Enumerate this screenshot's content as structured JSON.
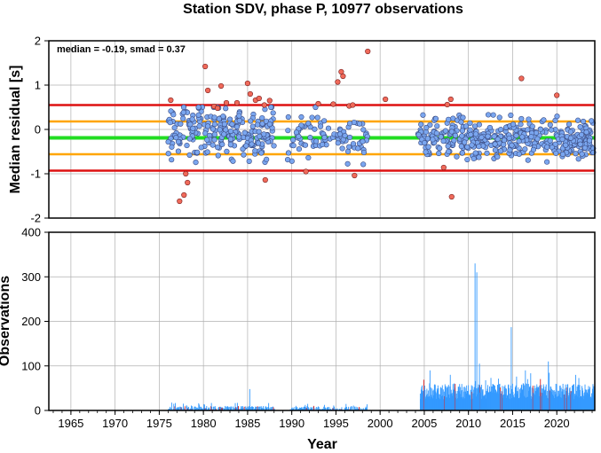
{
  "title": "Station SDV, phase P, 10977 observations",
  "colors": {
    "grid": "#b0b0b0",
    "point_normal": "#7aa6ef",
    "point_outlier": "#f06a5a",
    "line_median": "#22dd22",
    "line_inner": "#ffa500",
    "line_outer": "#dd1111",
    "bar_normal": "#3399ff",
    "bar_highlight": "#dd2222"
  },
  "chart_data": [
    {
      "type": "scatter",
      "ylabel": "Median residual [s]",
      "xlim": [
        1962.5,
        2024.3
      ],
      "ylim": [
        -2,
        2
      ],
      "yticks": [
        2,
        1,
        0,
        -1,
        -2
      ],
      "xticks": [
        1965,
        1970,
        1975,
        1980,
        1985,
        1990,
        1995,
        2000,
        2005,
        2010,
        2015,
        2020
      ],
      "grid": true,
      "annotation": "median = -0.19, smad = 0.37",
      "hlines": [
        {
          "y": 0.55,
          "color": "red"
        },
        {
          "y": 0.18,
          "color": "orange"
        },
        {
          "y": -0.19,
          "color": "green"
        },
        {
          "y": -0.56,
          "color": "orange"
        },
        {
          "y": -0.93,
          "color": "red"
        }
      ],
      "outliers": [
        [
          1976.3,
          0.66
        ],
        [
          1977.3,
          -1.62
        ],
        [
          1977.8,
          -1.48
        ],
        [
          1978.0,
          -1.0
        ],
        [
          1978.2,
          -1.2
        ],
        [
          1980.2,
          1.42
        ],
        [
          1980.5,
          0.88
        ],
        [
          1981.2,
          0.52
        ],
        [
          1981.6,
          0.48
        ],
        [
          1982.0,
          0.98
        ],
        [
          1982.6,
          0.6
        ],
        [
          1983.8,
          0.6
        ],
        [
          1985.0,
          1.04
        ],
        [
          1985.3,
          0.8
        ],
        [
          1985.9,
          0.66
        ],
        [
          1986.3,
          0.7
        ],
        [
          1986.9,
          0.55
        ],
        [
          1987.0,
          -1.14
        ],
        [
          1987.5,
          0.65
        ],
        [
          1991.6,
          -0.95
        ],
        [
          1993.0,
          0.58
        ],
        [
          1994.7,
          0.57
        ],
        [
          1995.2,
          1.07
        ],
        [
          1995.6,
          1.3
        ],
        [
          1995.8,
          1.2
        ],
        [
          1996.5,
          0.53
        ],
        [
          1996.9,
          0.55
        ],
        [
          1997.1,
          -1.04
        ],
        [
          1998.6,
          1.76
        ],
        [
          2000.6,
          0.68
        ],
        [
          2007.2,
          -0.86
        ],
        [
          2007.6,
          0.56
        ],
        [
          2008.0,
          0.68
        ],
        [
          2008.1,
          -1.52
        ],
        [
          2016.0,
          1.15
        ],
        [
          2020.0,
          0.77
        ]
      ],
      "point_note": "normal points drawn from generated series within the inner band"
    },
    {
      "type": "bar",
      "xlabel": "Year",
      "ylabel": "Observations",
      "xlim": [
        1962.5,
        2024.3
      ],
      "ylim": [
        0,
        400
      ],
      "yticks": [
        400,
        300,
        200,
        100,
        0
      ],
      "xticks": [
        1965,
        1970,
        1975,
        1980,
        1985,
        1990,
        1995,
        2000,
        2005,
        2010,
        2015,
        2020
      ],
      "grid": true,
      "peaks": [
        {
          "x": 1985.2,
          "value": 48
        },
        {
          "x": 2005.6,
          "value": 90
        },
        {
          "x": 2007.9,
          "value": 80
        },
        {
          "x": 2010.7,
          "value": 330
        },
        {
          "x": 2010.9,
          "value": 310
        },
        {
          "x": 2011.2,
          "value": 105
        },
        {
          "x": 2014.8,
          "value": 187
        },
        {
          "x": 2016.4,
          "value": 90
        },
        {
          "x": 2019.0,
          "value": 110
        }
      ]
    }
  ]
}
